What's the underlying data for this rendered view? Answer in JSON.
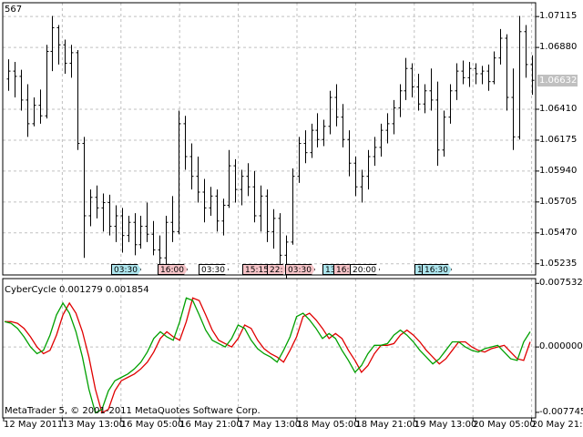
{
  "symbol": "567",
  "indicator": {
    "name": "CyberCycle",
    "value1": "0.001279",
    "value2": "0.001854"
  },
  "indicator_label": "CyberCycle 0.001279 0.001854",
  "copyright": "MetaTrader 5, © 2001-2011 MetaQuotes Software Corp.",
  "current_price": "1.06632",
  "price_axis": [
    "1.07115",
    "1.06880",
    "1.06410",
    "1.06175",
    "1.05940",
    "1.05705",
    "1.05470",
    "1.05235"
  ],
  "indicator_axis": [
    "0.007532",
    "0.000000",
    "-0.007745"
  ],
  "time_axis": [
    "12 May 2011",
    "13 May 13:00",
    "16 May 05:00",
    "16 May 21:00",
    "17 May 13:00",
    "18 May 05:00",
    "18 May 21:00",
    "19 May 13:00",
    "20 May 05:00",
    "20 May 21:00"
  ],
  "event_markers": [
    {
      "label": "03:30",
      "color": "blue"
    },
    {
      "label": "16:00",
      "color": "red"
    },
    {
      "label": "03:30",
      "color": "white"
    },
    {
      "label": "15:15",
      "color": "red"
    },
    {
      "label": "22:",
      "color": "red"
    },
    {
      "label": "03:30",
      "color": "red"
    },
    {
      "label": "13",
      "color": "blue"
    },
    {
      "label": "16:",
      "color": "red"
    },
    {
      "label": "20:00",
      "color": "white"
    },
    {
      "label": "16:30",
      "color": "blue"
    },
    {
      "label": "16:30",
      "color": "blue"
    }
  ],
  "colors": {
    "bars": "#000000",
    "grid": "#c0c0c0",
    "cycle": "#00a000",
    "trigger": "#e00000"
  },
  "chart_data": {
    "type": "line",
    "price_ylim": [
      1.0515,
      1.0722
    ],
    "indicator_ylim": [
      -0.0084,
      0.0081
    ],
    "price_bars": [
      {
        "o": 1.0664,
        "h": 1.0679,
        "l": 1.0655,
        "c": 1.067
      },
      {
        "o": 1.067,
        "h": 1.0677,
        "l": 1.065,
        "c": 1.0666
      },
      {
        "o": 1.0666,
        "h": 1.0671,
        "l": 1.064,
        "c": 1.0648
      },
      {
        "o": 1.0648,
        "h": 1.066,
        "l": 1.062,
        "c": 1.063
      },
      {
        "o": 1.063,
        "h": 1.065,
        "l": 1.0628,
        "c": 1.0644
      },
      {
        "o": 1.0644,
        "h": 1.0656,
        "l": 1.063,
        "c": 1.0636
      },
      {
        "o": 1.0636,
        "h": 1.069,
        "l": 1.0634,
        "c": 1.0685
      },
      {
        "o": 1.0685,
        "h": 1.0712,
        "l": 1.067,
        "c": 1.0703
      },
      {
        "o": 1.0703,
        "h": 1.0705,
        "l": 1.0675,
        "c": 1.069
      },
      {
        "o": 1.069,
        "h": 1.0694,
        "l": 1.0668,
        "c": 1.0676
      },
      {
        "o": 1.0676,
        "h": 1.069,
        "l": 1.0665,
        "c": 1.0684
      },
      {
        "o": 1.0684,
        "h": 1.0686,
        "l": 1.061,
        "c": 1.0615
      },
      {
        "o": 1.0615,
        "h": 1.062,
        "l": 1.0528,
        "c": 1.056
      },
      {
        "o": 1.056,
        "h": 1.058,
        "l": 1.0552,
        "c": 1.0574
      },
      {
        "o": 1.0574,
        "h": 1.0583,
        "l": 1.0558,
        "c": 1.0566
      },
      {
        "o": 1.0566,
        "h": 1.0577,
        "l": 1.0548,
        "c": 1.057
      },
      {
        "o": 1.057,
        "h": 1.0576,
        "l": 1.0545,
        "c": 1.0552
      },
      {
        "o": 1.0552,
        "h": 1.0568,
        "l": 1.054,
        "c": 1.056
      },
      {
        "o": 1.056,
        "h": 1.0566,
        "l": 1.0532,
        "c": 1.0545
      },
      {
        "o": 1.0545,
        "h": 1.056,
        "l": 1.054,
        "c": 1.0555
      },
      {
        "o": 1.0555,
        "h": 1.0562,
        "l": 1.053,
        "c": 1.0538
      },
      {
        "o": 1.0538,
        "h": 1.056,
        "l": 1.0535,
        "c": 1.0552
      },
      {
        "o": 1.0552,
        "h": 1.057,
        "l": 1.054,
        "c": 1.0546
      },
      {
        "o": 1.0546,
        "h": 1.0556,
        "l": 1.053,
        "c": 1.0534
      },
      {
        "o": 1.0534,
        "h": 1.0545,
        "l": 1.052,
        "c": 1.0528
      },
      {
        "o": 1.0528,
        "h": 1.056,
        "l": 1.0518,
        "c": 1.0555
      },
      {
        "o": 1.0555,
        "h": 1.0575,
        "l": 1.054,
        "c": 1.0548
      },
      {
        "o": 1.0548,
        "h": 1.064,
        "l": 1.0546,
        "c": 1.063
      },
      {
        "o": 1.063,
        "h": 1.0636,
        "l": 1.0595,
        "c": 1.0605
      },
      {
        "o": 1.0605,
        "h": 1.0615,
        "l": 1.058,
        "c": 1.059
      },
      {
        "o": 1.059,
        "h": 1.0605,
        "l": 1.057,
        "c": 1.0578
      },
      {
        "o": 1.0578,
        "h": 1.0588,
        "l": 1.0555,
        "c": 1.0566
      },
      {
        "o": 1.0566,
        "h": 1.0582,
        "l": 1.056,
        "c": 1.0575
      },
      {
        "o": 1.0575,
        "h": 1.058,
        "l": 1.0548,
        "c": 1.0556
      },
      {
        "o": 1.0556,
        "h": 1.0573,
        "l": 1.0545,
        "c": 1.0568
      },
      {
        "o": 1.0568,
        "h": 1.061,
        "l": 1.0566,
        "c": 1.0598
      },
      {
        "o": 1.0598,
        "h": 1.0603,
        "l": 1.057,
        "c": 1.058
      },
      {
        "o": 1.058,
        "h": 1.0595,
        "l": 1.0568,
        "c": 1.059
      },
      {
        "o": 1.059,
        "h": 1.06,
        "l": 1.0575,
        "c": 1.0582
      },
      {
        "o": 1.0582,
        "h": 1.0594,
        "l": 1.0555,
        "c": 1.056
      },
      {
        "o": 1.056,
        "h": 1.0583,
        "l": 1.0548,
        "c": 1.0575
      },
      {
        "o": 1.0575,
        "h": 1.058,
        "l": 1.054,
        "c": 1.0548
      },
      {
        "o": 1.0548,
        "h": 1.0565,
        "l": 1.0535,
        "c": 1.0558
      },
      {
        "o": 1.0558,
        "h": 1.0562,
        "l": 1.0518,
        "c": 1.053
      },
      {
        "o": 1.053,
        "h": 1.0545,
        "l": 1.0512,
        "c": 1.054
      },
      {
        "o": 1.054,
        "h": 1.0596,
        "l": 1.0538,
        "c": 1.059
      },
      {
        "o": 1.059,
        "h": 1.062,
        "l": 1.0585,
        "c": 1.0615
      },
      {
        "o": 1.0615,
        "h": 1.0625,
        "l": 1.06,
        "c": 1.0608
      },
      {
        "o": 1.0608,
        "h": 1.063,
        "l": 1.0604,
        "c": 1.0625
      },
      {
        "o": 1.0625,
        "h": 1.0638,
        "l": 1.0612,
        "c": 1.0618
      },
      {
        "o": 1.0618,
        "h": 1.0633,
        "l": 1.0613,
        "c": 1.0628
      },
      {
        "o": 1.0628,
        "h": 1.0655,
        "l": 1.0622,
        "c": 1.065
      },
      {
        "o": 1.065,
        "h": 1.066,
        "l": 1.0628,
        "c": 1.0635
      },
      {
        "o": 1.0635,
        "h": 1.0645,
        "l": 1.0612,
        "c": 1.0618
      },
      {
        "o": 1.0618,
        "h": 1.0625,
        "l": 1.059,
        "c": 1.06
      },
      {
        "o": 1.06,
        "h": 1.0605,
        "l": 1.0575,
        "c": 1.0582
      },
      {
        "o": 1.0582,
        "h": 1.0595,
        "l": 1.057,
        "c": 1.059
      },
      {
        "o": 1.059,
        "h": 1.061,
        "l": 1.058,
        "c": 1.0605
      },
      {
        "o": 1.0605,
        "h": 1.062,
        "l": 1.0598,
        "c": 1.0612
      },
      {
        "o": 1.0612,
        "h": 1.063,
        "l": 1.0605,
        "c": 1.0625
      },
      {
        "o": 1.0625,
        "h": 1.0638,
        "l": 1.0615,
        "c": 1.063
      },
      {
        "o": 1.063,
        "h": 1.0648,
        "l": 1.0622,
        "c": 1.0642
      },
      {
        "o": 1.0642,
        "h": 1.066,
        "l": 1.0635,
        "c": 1.0655
      },
      {
        "o": 1.0655,
        "h": 1.068,
        "l": 1.0648,
        "c": 1.0672
      },
      {
        "o": 1.0672,
        "h": 1.0676,
        "l": 1.065,
        "c": 1.0658
      },
      {
        "o": 1.0658,
        "h": 1.0668,
        "l": 1.064,
        "c": 1.0645
      },
      {
        "o": 1.0645,
        "h": 1.066,
        "l": 1.0638,
        "c": 1.0655
      },
      {
        "o": 1.0655,
        "h": 1.0672,
        "l": 1.064,
        "c": 1.0648
      },
      {
        "o": 1.0648,
        "h": 1.0662,
        "l": 1.0598,
        "c": 1.061
      },
      {
        "o": 1.061,
        "h": 1.064,
        "l": 1.0605,
        "c": 1.0635
      },
      {
        "o": 1.0635,
        "h": 1.066,
        "l": 1.063,
        "c": 1.0655
      },
      {
        "o": 1.0655,
        "h": 1.0676,
        "l": 1.0648,
        "c": 1.067
      },
      {
        "o": 1.067,
        "h": 1.0678,
        "l": 1.066,
        "c": 1.0665
      },
      {
        "o": 1.0665,
        "h": 1.0677,
        "l": 1.0658,
        "c": 1.0672
      },
      {
        "o": 1.0672,
        "h": 1.0676,
        "l": 1.066,
        "c": 1.0668
      },
      {
        "o": 1.0668,
        "h": 1.0674,
        "l": 1.066,
        "c": 1.067
      },
      {
        "o": 1.067,
        "h": 1.0675,
        "l": 1.0655,
        "c": 1.0662
      },
      {
        "o": 1.0662,
        "h": 1.0685,
        "l": 1.066,
        "c": 1.068
      },
      {
        "o": 1.068,
        "h": 1.0702,
        "l": 1.0675,
        "c": 1.0695
      },
      {
        "o": 1.0695,
        "h": 1.0698,
        "l": 1.064,
        "c": 1.065
      },
      {
        "o": 1.065,
        "h": 1.0672,
        "l": 1.061,
        "c": 1.062
      },
      {
        "o": 1.062,
        "h": 1.0712,
        "l": 1.0618,
        "c": 1.07
      },
      {
        "o": 1.07,
        "h": 1.0705,
        "l": 1.0665,
        "c": 1.0675
      },
      {
        "o": 1.0675,
        "h": 1.0682,
        "l": 1.0652,
        "c": 1.0663
      }
    ],
    "cycle": [
      0.003,
      0.0028,
      0.0022,
      0.0012,
      0.0,
      -0.0008,
      -0.0004,
      0.0014,
      0.0038,
      0.0052,
      0.004,
      0.0018,
      -0.0012,
      -0.005,
      -0.0078,
      -0.0074,
      -0.0052,
      -0.004,
      -0.0036,
      -0.0032,
      -0.0026,
      -0.0018,
      -0.0006,
      0.001,
      0.0018,
      0.0012,
      0.0008,
      0.003,
      0.0058,
      0.0055,
      0.0038,
      0.002,
      0.0008,
      0.0004,
      0.0,
      0.001,
      0.0026,
      0.0022,
      0.0008,
      -0.0002,
      -0.0008,
      -0.0012,
      -0.0018,
      -0.0004,
      0.0012,
      0.0036,
      0.004,
      0.0032,
      0.0022,
      0.001,
      0.0016,
      0.001,
      -0.0004,
      -0.0016,
      -0.003,
      -0.0022,
      -0.0008,
      0.0002,
      0.0002,
      0.0004,
      0.0014,
      0.002,
      0.0014,
      0.0006,
      -0.0004,
      -0.0012,
      -0.002,
      -0.0014,
      -0.0004,
      0.0006,
      0.0006,
      0.0,
      -0.0004,
      -0.0006,
      -0.0002,
      0.0,
      0.0002,
      -0.0006,
      -0.0014,
      -0.0016,
      0.0006,
      0.0018
    ]
  }
}
